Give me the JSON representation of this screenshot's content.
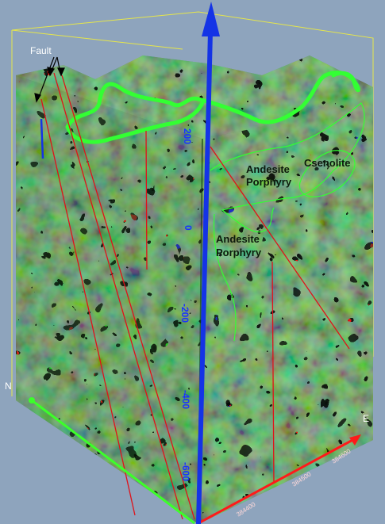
{
  "labels": {
    "fault": "Fault",
    "andesite_upper_1": "Andesite",
    "andesite_upper_2": "Porphyry",
    "xenolith": "Csenolite",
    "andesite_lower_1": "Andesite",
    "andesite_lower_2": "Porphyry"
  },
  "directions": {
    "north": "N",
    "east": "E"
  },
  "depth_ticks": [
    "200",
    "0",
    "-200",
    "-400",
    "-600"
  ],
  "north_axis_ticks": [
    "",
    "",
    "",
    ""
  ],
  "east_axis_ticks": [
    "384400",
    "384500",
    "384600"
  ],
  "colors": {
    "background": "#8ea4bd",
    "vertical_axis": "#1433e6",
    "north_axis": "#3cff2a",
    "east_axis": "#ff1a1a",
    "fault_lines": "#e0121a",
    "contact_outline": "#33ff33",
    "bounding_box": "#e6e64a",
    "volume_base": "#1e8c1e"
  },
  "icons": {
    "vertical_axis_arrow": "arrow-up-icon"
  }
}
